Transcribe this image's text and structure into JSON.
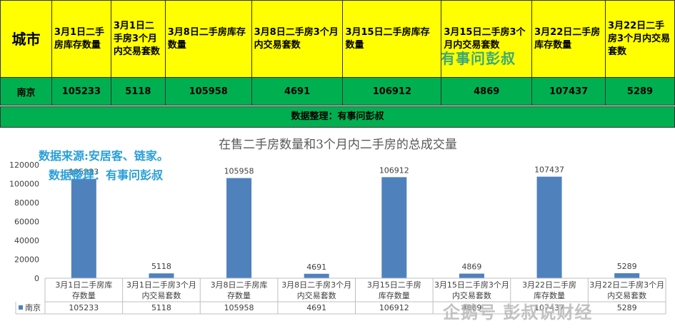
{
  "table": {
    "city_header": "城市",
    "columns": [
      "3月1日二手房库存数量",
      "3月1日二手房3个月内交易套数",
      "3月8日二手房库存数量",
      "3月8日二手房3个月内交易套数",
      "3月15日二手房库存数量",
      "3月15日二手房3个月内交易套数",
      "3月22日二手房库存数量",
      "3月22日二手房3个月内交易套数"
    ],
    "row_city": "南京",
    "row_values": [
      "105233",
      "5118",
      "105958",
      "4691",
      "106912",
      "4869",
      "107437",
      "5289"
    ]
  },
  "banner": "数据整理：有事问彭叔",
  "watermark_top": "有事问彭叔",
  "notes": [
    "数据来源:安居客、链家。",
    "数据整理：有事问彭叔"
  ],
  "watermark_bottom": "企鹅号 彭叔说财经",
  "chart_data": {
    "type": "bar",
    "title": "在售二手房数量和3个月内二手房的总成交量",
    "categories": [
      "3月1日二手房库存数量",
      "3月1日二手房3个月内交易套数",
      "3月8日二手房库存数量",
      "3月8日二手房3个月内交易套数",
      "3月15日二手房库存数量",
      "3月15日二手房3个月内交易套数",
      "3月22日二手房库存数量",
      "3月22日二手房3个月内交易套数"
    ],
    "series": [
      {
        "name": "南京",
        "values": [
          105233,
          5118,
          105958,
          4691,
          106912,
          4869,
          107437,
          5289
        ]
      }
    ],
    "ylim": [
      0,
      120000
    ],
    "yticks": [
      0,
      20000,
      40000,
      60000,
      80000,
      100000,
      120000
    ],
    "grid": false,
    "legend": "data-table-left",
    "color": "#4f81bd"
  }
}
